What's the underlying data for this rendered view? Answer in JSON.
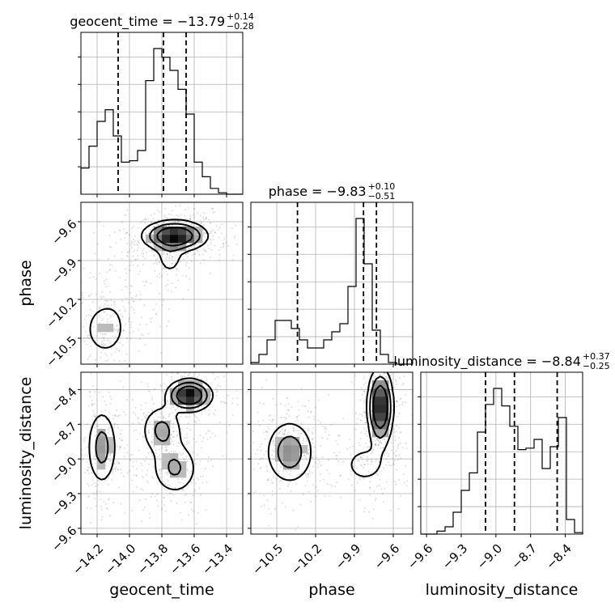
{
  "chart_data": {
    "type": "corner",
    "parameters": [
      {
        "name": "geocent_time",
        "title": "geocent_time = −13.79",
        "title_plus": "+0.14",
        "title_minus": "−0.28",
        "range": [
          -14.3,
          -13.3
        ],
        "ticks": [
          -14.2,
          -14.0,
          -13.8,
          -13.6,
          -13.4
        ],
        "tick_labels": [
          "−14.2",
          "−14.0",
          "−13.8",
          "−13.6",
          "−13.4"
        ],
        "quantiles": [
          -14.07,
          -13.79,
          -13.65
        ],
        "hist": [
          0.18,
          0.33,
          0.5,
          0.58,
          0.4,
          0.22,
          0.23,
          0.3,
          0.78,
          1.0,
          0.94,
          0.85,
          0.72,
          0.55,
          0.22,
          0.12,
          0.04,
          0.01,
          0.0,
          0.0
        ]
      },
      {
        "name": "phase",
        "title": "phase = −9.83",
        "title_plus": "+0.10",
        "title_minus": "−0.51",
        "range": [
          -10.7,
          -9.45
        ],
        "ticks": [
          -10.5,
          -10.2,
          -9.9,
          -9.6
        ],
        "tick_labels": [
          "−10.5",
          "−10.2",
          "−9.9",
          "−9.6"
        ],
        "quantiles": [
          -10.34,
          -9.83,
          -9.73
        ],
        "hist": [
          0.01,
          0.06,
          0.15,
          0.27,
          0.27,
          0.22,
          0.15,
          0.1,
          0.1,
          0.15,
          0.2,
          0.25,
          0.48,
          0.9,
          0.62,
          0.21,
          0.06,
          0.01,
          0.0,
          0.0
        ]
      },
      {
        "name": "luminosity_distance",
        "title": "luminosity_distance = −8.84",
        "title_plus": "+0.37",
        "title_minus": "−0.25",
        "range": [
          -9.65,
          -8.25
        ],
        "ticks": [
          -9.6,
          -9.3,
          -9.0,
          -8.7,
          -8.4
        ],
        "tick_labels": [
          "−9.6",
          "−9.3",
          "−9.0",
          "−8.7",
          "−8.4"
        ],
        "quantiles": [
          -9.09,
          -8.84,
          -8.47
        ],
        "hist": [
          0.0,
          0.0,
          0.02,
          0.05,
          0.15,
          0.3,
          0.42,
          0.7,
          0.89,
          1.0,
          0.88,
          0.74,
          0.58,
          0.59,
          0.65,
          0.45,
          0.6,
          0.8,
          0.1,
          0.01
        ]
      }
    ],
    "modes": {
      "geocent_time-phase": [
        {
          "x": -13.72,
          "y": -9.71,
          "sx": 0.1,
          "sy": 0.06,
          "w": 0.6
        },
        {
          "x": -14.15,
          "y": -10.43,
          "sx": 0.07,
          "sy": 0.11,
          "w": 0.22
        },
        {
          "x": -14.0,
          "y": -10.15,
          "sx": 0.1,
          "sy": 0.12,
          "w": 0.1
        },
        {
          "x": -13.75,
          "y": -9.88,
          "sx": 0.05,
          "sy": 0.08,
          "w": 0.08
        }
      ],
      "geocent_time-luminosity_distance": [
        {
          "x": -13.63,
          "y": -8.45,
          "sx": 0.07,
          "sy": 0.07,
          "w": 0.33
        },
        {
          "x": -13.8,
          "y": -8.75,
          "sx": 0.07,
          "sy": 0.12,
          "w": 0.2
        },
        {
          "x": -14.17,
          "y": -8.9,
          "sx": 0.05,
          "sy": 0.18,
          "w": 0.24
        },
        {
          "x": -13.72,
          "y": -9.08,
          "sx": 0.08,
          "sy": 0.13,
          "w": 0.23
        }
      ],
      "phase-luminosity_distance": [
        {
          "x": -9.7,
          "y": -8.55,
          "sx": 0.05,
          "sy": 0.17,
          "w": 0.48
        },
        {
          "x": -9.82,
          "y": -9.05,
          "sx": 0.12,
          "sy": 0.12,
          "w": 0.14
        },
        {
          "x": -10.4,
          "y": -8.94,
          "sx": 0.1,
          "sy": 0.15,
          "w": 0.38
        }
      ]
    },
    "grid": true,
    "colormap": "greys",
    "contour_color": "#000000",
    "quantile_style": "dashed"
  }
}
